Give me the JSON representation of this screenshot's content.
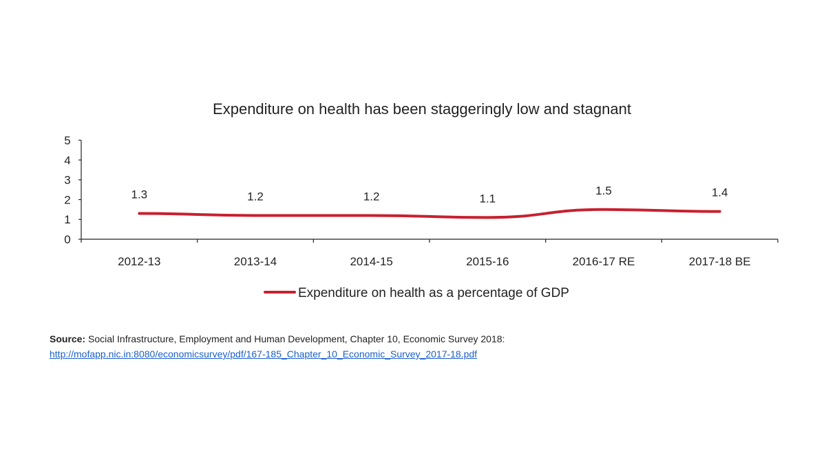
{
  "chart_data": {
    "type": "line",
    "title": "Expenditure on health has been staggeringly low and stagnant",
    "categories": [
      "2012-13",
      "2013-14",
      "2014-15",
      "2015-16",
      "2016-17 RE",
      "2017-18 BE"
    ],
    "series": [
      {
        "name": "Expenditure on health as a percentage of GDP",
        "values": [
          1.3,
          1.2,
          1.2,
          1.1,
          1.5,
          1.4
        ],
        "color": "#c8202f"
      }
    ],
    "data_labels": [
      "1.3",
      "1.2",
      "1.2",
      "1.1",
      "1.5",
      "1.4"
    ],
    "ylim": [
      0,
      5
    ],
    "yticks": [
      0,
      1,
      2,
      3,
      4,
      5
    ],
    "grid": false,
    "legend_position": "bottom"
  },
  "source": {
    "label": "Source:",
    "text": " Social Infrastructure, Employment and Human Development, Chapter 10, Economic Survey 2018:",
    "link": "http://mofapp.nic.in:8080/economicsurvey/pdf/167-185_Chapter_10_Economic_Survey_2017-18.pdf"
  }
}
